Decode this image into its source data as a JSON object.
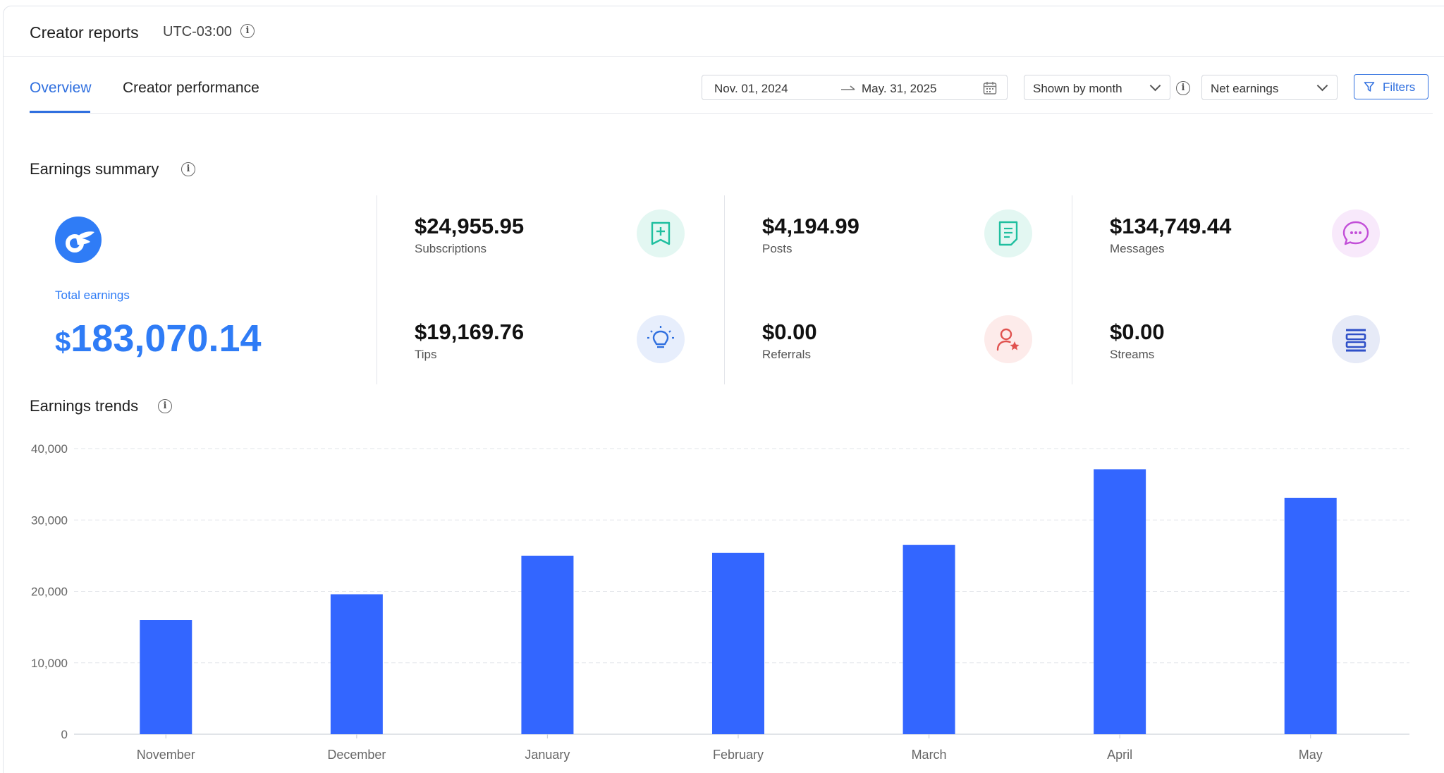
{
  "header": {
    "title": "Creator reports",
    "timezone": "UTC-03:00"
  },
  "tabs": [
    {
      "label": "Overview",
      "active": true
    },
    {
      "label": "Creator performance",
      "active": false
    }
  ],
  "controls": {
    "date_start": "Nov. 01, 2024",
    "date_end": "May. 31, 2025",
    "grouping": "Shown by month",
    "metric": "Net earnings",
    "filters_label": "Filters"
  },
  "summary": {
    "title": "Earnings summary",
    "total_label": "Total earnings",
    "total_currency": "$",
    "total_value": "183,070.14",
    "stats": [
      {
        "value": "$24,955.95",
        "label": "Subscriptions",
        "icon": "subscriptions-icon",
        "color": "#1fbf9f",
        "bg": "#e3f7f2"
      },
      {
        "value": "$4,194.99",
        "label": "Posts",
        "icon": "posts-icon",
        "color": "#1fbf9f",
        "bg": "#e3f7f2"
      },
      {
        "value": "$134,749.44",
        "label": "Messages",
        "icon": "messages-icon",
        "color": "#c24fd8",
        "bg": "#f8e9fb"
      },
      {
        "value": "$19,169.76",
        "label": "Tips",
        "icon": "tips-icon",
        "color": "#2f6fdf",
        "bg": "#e7eefc"
      },
      {
        "value": "$0.00",
        "label": "Referrals",
        "icon": "referrals-icon",
        "color": "#e0524f",
        "bg": "#fdebea"
      },
      {
        "value": "$0.00",
        "label": "Streams",
        "icon": "streams-icon",
        "color": "#2f50c8",
        "bg": "#e6eaf7"
      }
    ]
  },
  "trends": {
    "title": "Earnings trends"
  },
  "colors": {
    "accent": "#2f6fdf",
    "bar": "#3366ff",
    "brand": "#2f7cf6"
  },
  "chart_data": {
    "type": "bar",
    "categories": [
      "November",
      "December",
      "January",
      "February",
      "March",
      "April",
      "May"
    ],
    "values": [
      16000,
      19600,
      25000,
      25400,
      26500,
      37100,
      33100
    ],
    "ylim": [
      0,
      40000
    ],
    "yticks": [
      "0",
      "10,000",
      "20,000",
      "30,000",
      "40,000"
    ],
    "title": "",
    "xlabel": "",
    "ylabel": "",
    "grid": true
  }
}
